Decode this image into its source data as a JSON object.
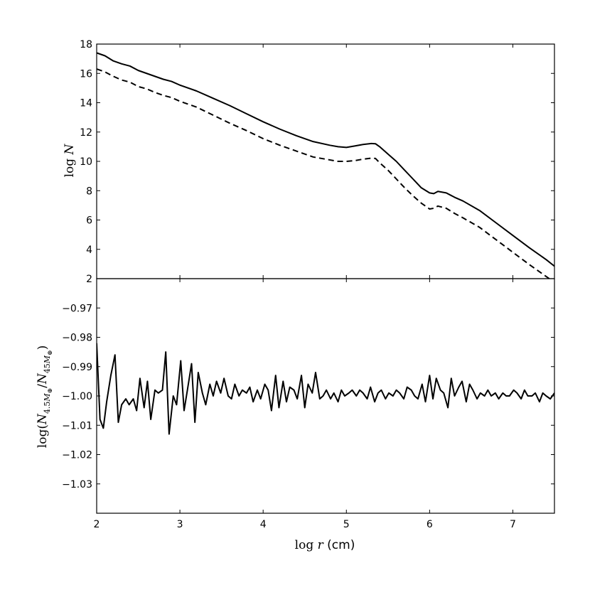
{
  "chart_data": [
    {
      "type": "line",
      "xlabel": "log r (cm)",
      "ylabel": "log N",
      "xlim": [
        2,
        7.5
      ],
      "ylim": [
        2,
        18
      ],
      "xticks": [
        2,
        3,
        4,
        5,
        6,
        7
      ],
      "yticks": [
        2,
        4,
        6,
        8,
        10,
        12,
        14,
        16,
        18
      ],
      "ytick_labels": [
        "2",
        "4",
        "6",
        "8",
        "10",
        "12",
        "14",
        "16",
        "18"
      ],
      "show_xtick_labels": false,
      "grid": false,
      "legend": "none",
      "series": [
        {
          "style": "solid",
          "color": "#000000",
          "x": [
            2.0,
            2.1,
            2.2,
            2.3,
            2.4,
            2.5,
            2.6,
            2.7,
            2.8,
            2.9,
            3.0,
            3.2,
            3.4,
            3.6,
            3.8,
            4.0,
            4.2,
            4.4,
            4.6,
            4.8,
            4.9,
            5.0,
            5.1,
            5.2,
            5.3,
            5.35,
            5.4,
            5.5,
            5.6,
            5.7,
            5.8,
            5.9,
            6.0,
            6.05,
            6.1,
            6.2,
            6.3,
            6.4,
            6.6,
            6.8,
            7.0,
            7.2,
            7.4,
            7.5
          ],
          "y": [
            17.4,
            17.2,
            16.85,
            16.65,
            16.5,
            16.2,
            16.0,
            15.8,
            15.6,
            15.45,
            15.2,
            14.8,
            14.3,
            13.8,
            13.25,
            12.7,
            12.2,
            11.75,
            11.35,
            11.1,
            11.0,
            10.95,
            11.05,
            11.15,
            11.22,
            11.2,
            11.0,
            10.5,
            10.0,
            9.4,
            8.8,
            8.2,
            7.85,
            7.8,
            7.95,
            7.85,
            7.55,
            7.3,
            6.65,
            5.8,
            4.95,
            4.1,
            3.3,
            2.85
          ]
        },
        {
          "style": "dashed",
          "color": "#000000",
          "x": [
            2.0,
            2.1,
            2.2,
            2.3,
            2.4,
            2.5,
            2.6,
            2.7,
            2.8,
            2.9,
            3.0,
            3.2,
            3.4,
            3.6,
            3.8,
            4.0,
            4.2,
            4.4,
            4.6,
            4.8,
            4.9,
            5.0,
            5.1,
            5.2,
            5.3,
            5.35,
            5.4,
            5.5,
            5.6,
            5.7,
            5.8,
            5.9,
            6.0,
            6.05,
            6.1,
            6.2,
            6.3,
            6.4,
            6.6,
            6.8,
            7.0,
            7.2,
            7.4,
            7.5
          ],
          "y": [
            16.3,
            16.1,
            15.8,
            15.55,
            15.4,
            15.1,
            14.95,
            14.7,
            14.5,
            14.35,
            14.1,
            13.7,
            13.15,
            12.6,
            12.1,
            11.55,
            11.1,
            10.7,
            10.3,
            10.1,
            10.0,
            10.0,
            10.05,
            10.15,
            10.22,
            10.2,
            9.9,
            9.4,
            8.8,
            8.2,
            7.65,
            7.15,
            6.75,
            6.8,
            6.95,
            6.8,
            6.45,
            6.15,
            5.5,
            4.65,
            3.8,
            2.95,
            2.15,
            1.75
          ]
        }
      ]
    },
    {
      "type": "line",
      "xlabel": "log r (cm)",
      "ylabel": "log(N_{4.5M⊕}/N_{45M⊕})",
      "xlim": [
        2,
        7.5
      ],
      "ylim": [
        -1.04,
        -0.96
      ],
      "xticks": [
        2,
        3,
        4,
        5,
        6,
        7
      ],
      "xtick_labels": [
        "2",
        "3",
        "4",
        "5",
        "6",
        "7"
      ],
      "yticks": [
        -1.03,
        -1.02,
        -1.01,
        -1.0,
        -0.99,
        -0.98,
        -0.97
      ],
      "ytick_labels": [
        "−1.03",
        "−1.02",
        "−1.01",
        "−1.00",
        "−0.99",
        "−0.98",
        "−0.97"
      ],
      "grid": false,
      "legend": "none",
      "series": [
        {
          "style": "solid",
          "color": "#000000",
          "x": [
            2.0,
            2.04,
            2.08,
            2.12,
            2.17,
            2.22,
            2.26,
            2.3,
            2.35,
            2.39,
            2.44,
            2.48,
            2.52,
            2.57,
            2.61,
            2.65,
            2.7,
            2.74,
            2.79,
            2.83,
            2.87,
            2.92,
            2.96,
            3.01,
            3.05,
            3.09,
            3.14,
            3.18,
            3.22,
            3.27,
            3.31,
            3.36,
            3.4,
            3.44,
            3.49,
            3.53,
            3.58,
            3.62,
            3.66,
            3.71,
            3.75,
            3.8,
            3.84,
            3.88,
            3.93,
            3.97,
            4.02,
            4.06,
            4.1,
            4.15,
            4.19,
            4.24,
            4.28,
            4.32,
            4.37,
            4.41,
            4.46,
            4.5,
            4.54,
            4.59,
            4.63,
            4.68,
            4.72,
            4.76,
            4.81,
            4.85,
            4.9,
            4.94,
            4.98,
            5.03,
            5.07,
            5.12,
            5.16,
            5.2,
            5.25,
            5.29,
            5.34,
            5.38,
            5.42,
            5.47,
            5.51,
            5.56,
            5.6,
            5.64,
            5.69,
            5.73,
            5.78,
            5.82,
            5.86,
            5.91,
            5.95,
            6.0,
            6.04,
            6.08,
            6.13,
            6.17,
            6.22,
            6.26,
            6.3,
            6.35,
            6.39,
            6.44,
            6.48,
            6.52,
            6.57,
            6.61,
            6.66,
            6.7,
            6.74,
            6.79,
            6.83,
            6.88,
            6.92,
            6.96,
            7.01,
            7.05,
            7.1,
            7.14,
            7.18,
            7.23,
            7.27,
            7.32,
            7.36,
            7.4,
            7.45,
            7.5
          ],
          "y": [
            -0.982,
            -1.008,
            -1.011,
            -1.002,
            -0.993,
            -0.986,
            -1.009,
            -1.003,
            -1.001,
            -1.003,
            -1.001,
            -1.005,
            -0.994,
            -1.004,
            -0.995,
            -1.008,
            -0.998,
            -0.999,
            -0.998,
            -0.985,
            -1.013,
            -1.0,
            -1.003,
            -0.988,
            -1.005,
            -0.998,
            -0.989,
            -1.009,
            -0.992,
            -0.999,
            -1.003,
            -0.996,
            -1.0,
            -0.995,
            -0.999,
            -0.994,
            -1.0,
            -1.001,
            -0.996,
            -1.0,
            -0.998,
            -0.999,
            -0.997,
            -1.002,
            -0.998,
            -1.001,
            -0.996,
            -0.998,
            -1.005,
            -0.993,
            -1.004,
            -0.995,
            -1.002,
            -0.997,
            -0.998,
            -1.001,
            -0.993,
            -1.004,
            -0.996,
            -0.999,
            -0.992,
            -1.001,
            -1.0,
            -0.998,
            -1.001,
            -0.999,
            -1.002,
            -0.998,
            -1.0,
            -0.999,
            -0.998,
            -1.0,
            -0.998,
            -0.999,
            -1.001,
            -0.997,
            -1.002,
            -0.999,
            -0.998,
            -1.001,
            -0.999,
            -1.0,
            -0.998,
            -0.999,
            -1.001,
            -0.997,
            -0.998,
            -1.0,
            -1.001,
            -0.996,
            -1.002,
            -0.993,
            -1.001,
            -0.994,
            -0.998,
            -0.999,
            -1.004,
            -0.994,
            -1.0,
            -0.997,
            -0.995,
            -1.002,
            -0.996,
            -0.998,
            -1.001,
            -0.999,
            -1.0,
            -0.998,
            -1.0,
            -0.999,
            -1.001,
            -0.999,
            -1.0,
            -1.0,
            -0.998,
            -0.999,
            -1.001,
            -0.998,
            -1.0,
            -1.0,
            -0.999,
            -1.002,
            -0.999,
            -1.0,
            -1.001,
            -0.999
          ]
        }
      ]
    }
  ]
}
